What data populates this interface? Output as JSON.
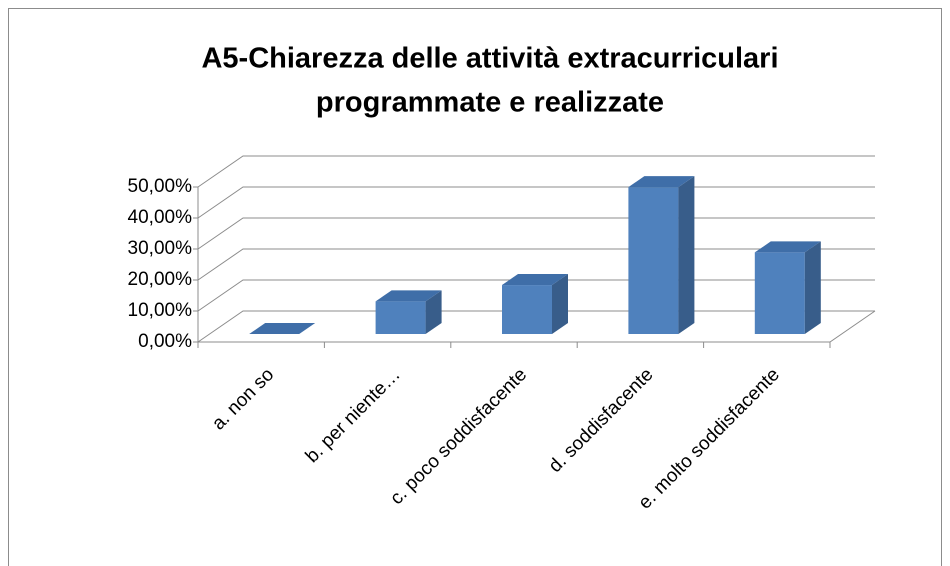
{
  "chart_data": {
    "type": "bar3d",
    "title": "A5-Chiarezza delle attività extracurriculari",
    "subtitle": "programmate e realizzate",
    "categories": [
      "a. non so",
      "b. per niente…",
      "c. poco soddisfacente",
      "d.  soddisfacente",
      "e. molto soddisfacente"
    ],
    "values": [
      0,
      10.53,
      15.79,
      47.37,
      26.32
    ],
    "color": "#4f81bd",
    "ylim": [
      0,
      50
    ],
    "yticks": [
      {
        "value": 0,
        "label": "0,00%"
      },
      {
        "value": 10,
        "label": "10,00%"
      },
      {
        "value": 20,
        "label": "20,00%"
      },
      {
        "value": 30,
        "label": "30,00%"
      },
      {
        "value": 40,
        "label": "40,00%"
      },
      {
        "value": 50,
        "label": "50,00%"
      }
    ],
    "grid": true
  }
}
